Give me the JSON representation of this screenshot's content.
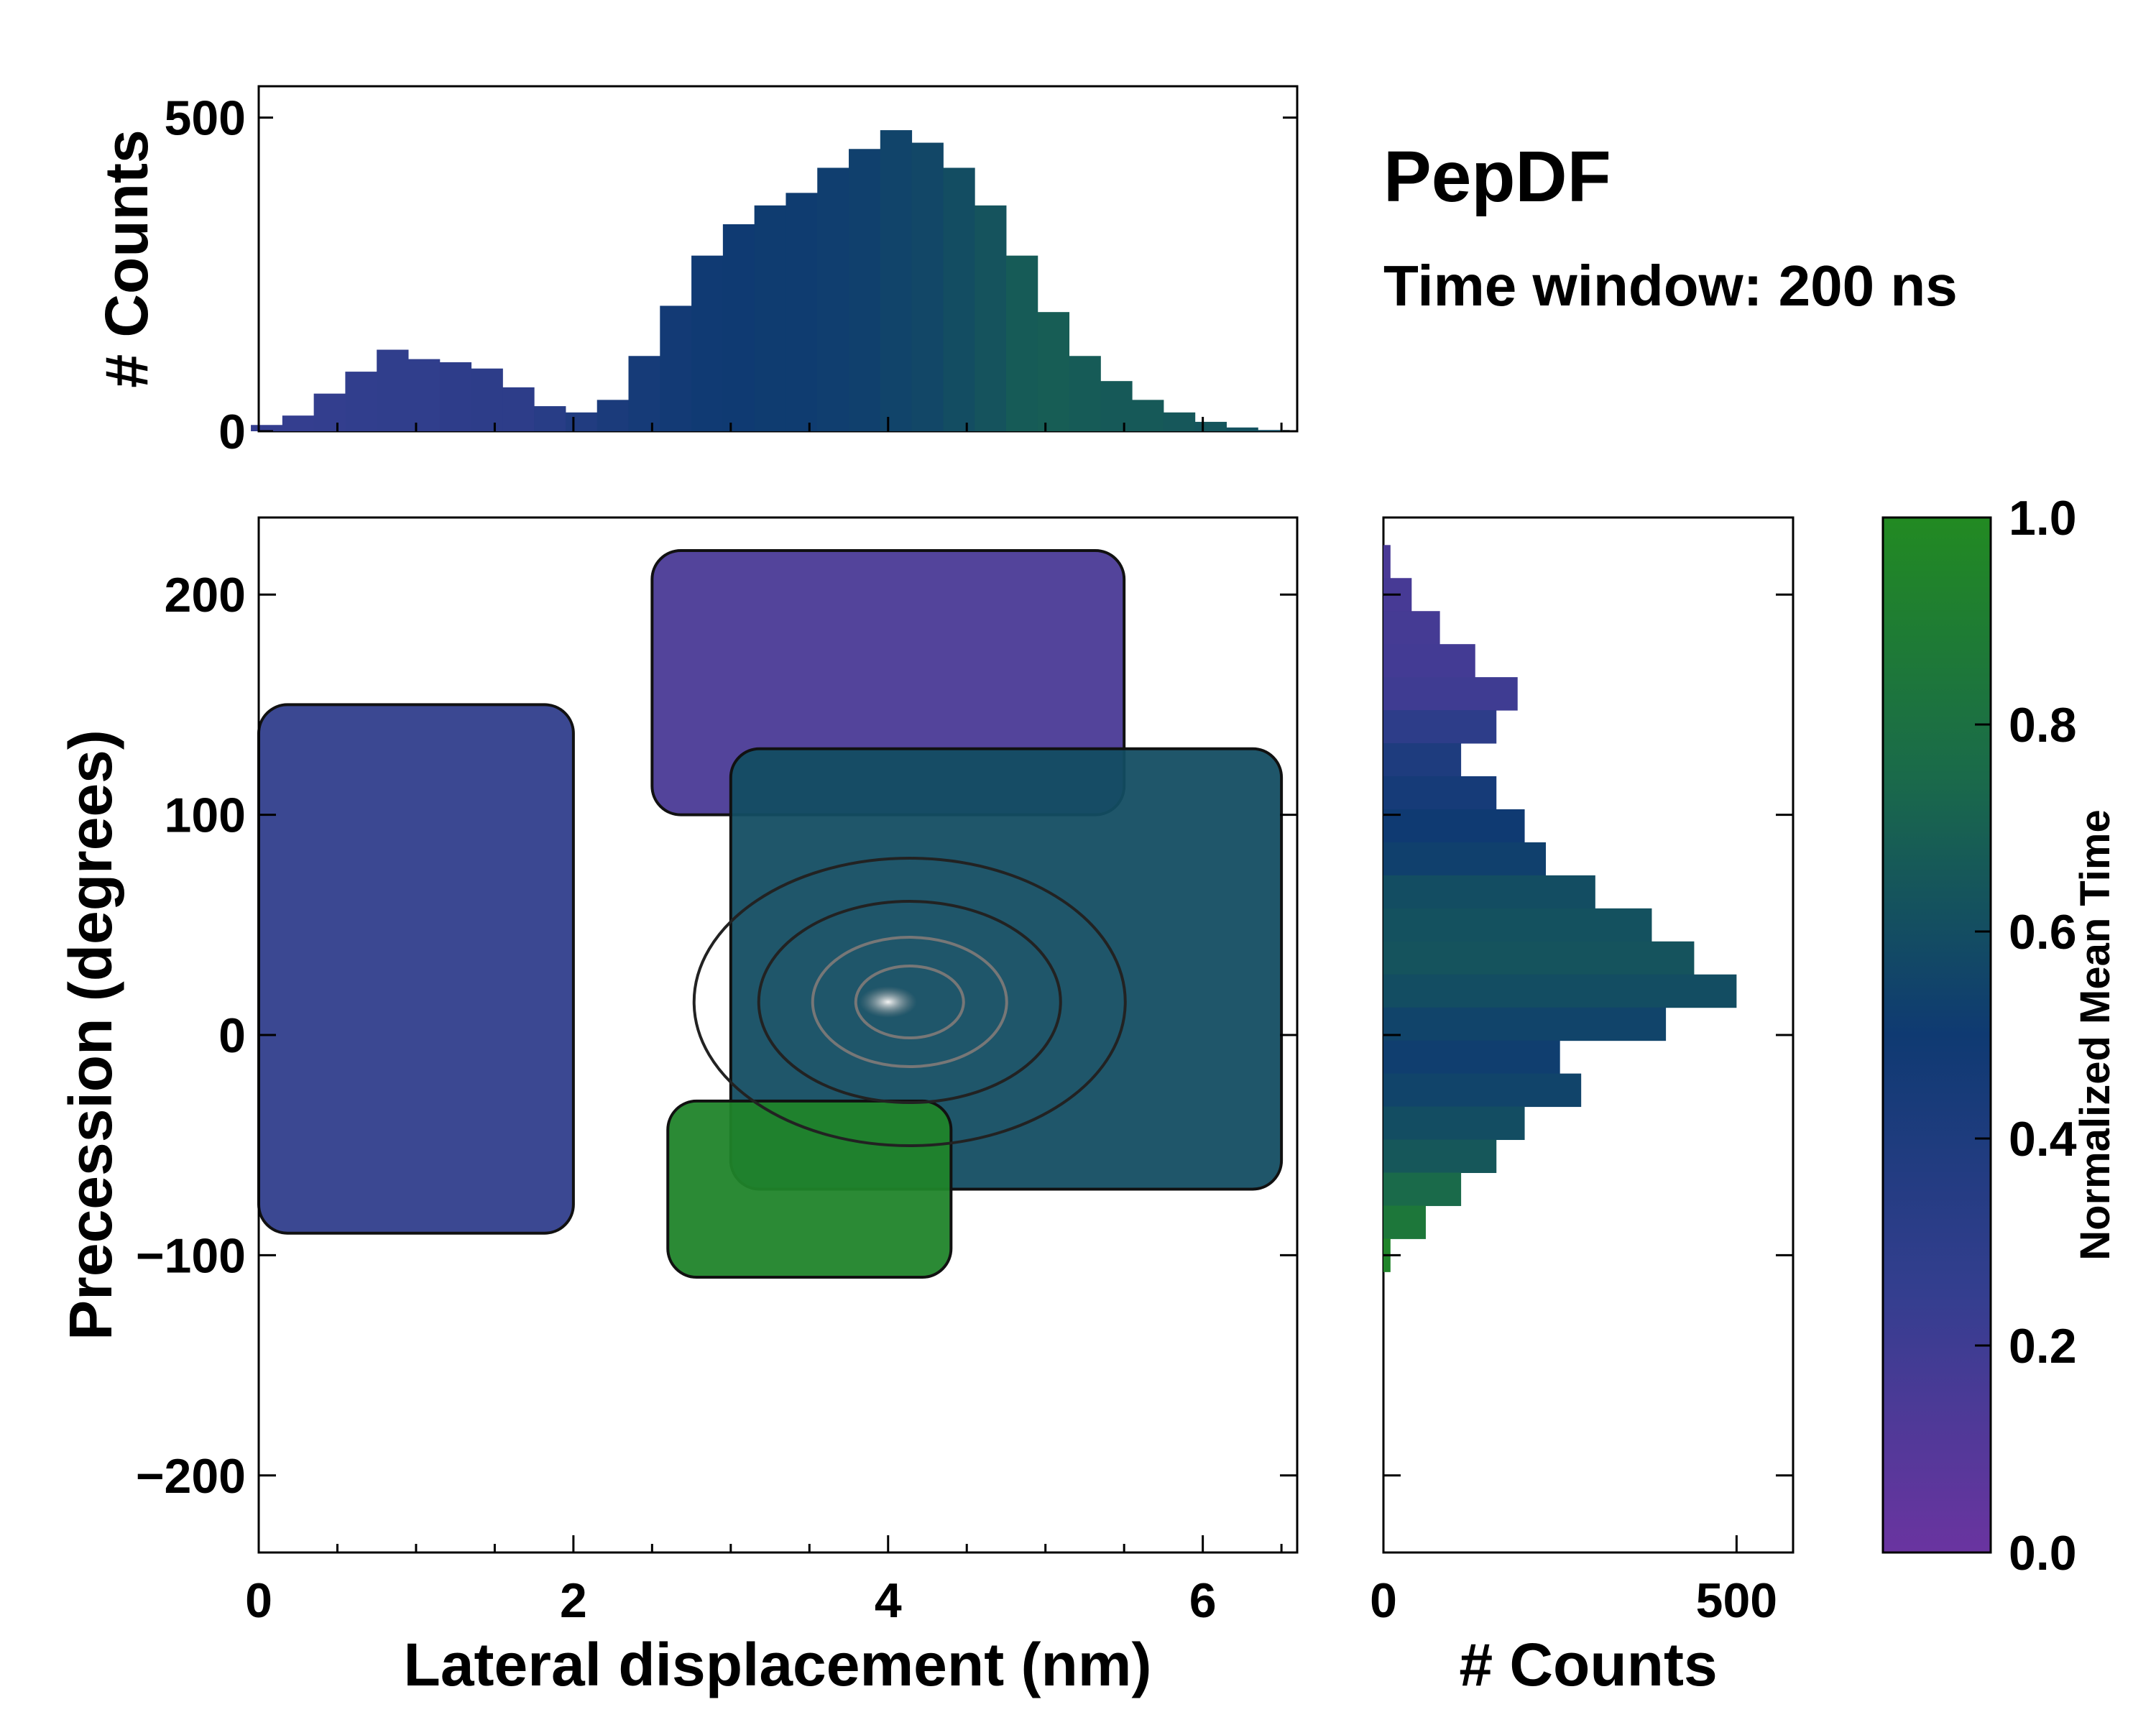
{
  "chart_data": [
    {
      "id": "top_hist",
      "type": "bar",
      "title": "",
      "xlabel": "",
      "ylabel": "# Counts",
      "xlim": [
        0,
        6.6
      ],
      "ylim": [
        0,
        550
      ],
      "yticks": [
        0,
        500
      ],
      "bin_width": 0.05,
      "bins_x": [
        0.05,
        0.25,
        0.45,
        0.65,
        0.85,
        1.05,
        1.25,
        1.45,
        1.65,
        1.85,
        2.05,
        2.25,
        2.45,
        2.65,
        2.85,
        3.05,
        3.25,
        3.45,
        3.65,
        3.85,
        4.05,
        4.25,
        4.45,
        4.65,
        4.85,
        5.05,
        5.25,
        5.45,
        5.65,
        5.85,
        6.05,
        6.25,
        6.45
      ],
      "values": [
        10,
        25,
        60,
        95,
        130,
        115,
        110,
        100,
        70,
        40,
        30,
        50,
        120,
        200,
        280,
        330,
        360,
        380,
        420,
        450,
        480,
        460,
        420,
        360,
        280,
        190,
        120,
        80,
        50,
        30,
        15,
        6,
        2
      ],
      "color_values": [
        0.25,
        0.25,
        0.26,
        0.27,
        0.28,
        0.28,
        0.29,
        0.3,
        0.3,
        0.33,
        0.38,
        0.42,
        0.45,
        0.47,
        0.49,
        0.5,
        0.51,
        0.51,
        0.52,
        0.53,
        0.55,
        0.57,
        0.6,
        0.63,
        0.67,
        0.68,
        0.67,
        0.66,
        0.66,
        0.65,
        0.64,
        0.62,
        0.6
      ]
    },
    {
      "id": "main_map",
      "type": "heatmap",
      "title": "",
      "xlabel": "Lateral displacement (nm)",
      "ylabel": "Precession (degrees)",
      "xlim": [
        0,
        6.6
      ],
      "ylim": [
        -235,
        235
      ],
      "xticks": [
        0,
        2,
        4,
        6
      ],
      "ytick_values": [
        -200,
        -100,
        0,
        100,
        200
      ],
      "ytick_labels": [
        "−200",
        "−100",
        "0",
        "100",
        "200"
      ],
      "colorbar_label": "Normalized Mean Time",
      "regions": [
        {
          "name": "upper-left basin",
          "x_range": [
            0.0,
            2.0
          ],
          "y_range": [
            -90,
            150
          ],
          "mean_time": 0.28
        },
        {
          "name": "top basin",
          "x_range": [
            2.5,
            5.5
          ],
          "y_range": [
            100,
            220
          ],
          "mean_time": 0.15
        },
        {
          "name": "central basin",
          "x_range": [
            3.0,
            6.5
          ],
          "y_range": [
            -70,
            130
          ],
          "mean_time": 0.6
        },
        {
          "name": "lower basin",
          "x_range": [
            2.6,
            4.4
          ],
          "y_range": [
            -110,
            -30
          ],
          "mean_time": 0.95
        }
      ],
      "density_peak": {
        "x": 4.0,
        "y": 15
      }
    },
    {
      "id": "right_hist",
      "type": "bar",
      "orientation": "horizontal",
      "xlabel": "# Counts",
      "ylabel": "",
      "xlim": [
        0,
        580
      ],
      "ylim": [
        -235,
        235
      ],
      "xticks": [
        0,
        500
      ],
      "bin_width_degrees": 5,
      "bins_y": [
        215,
        200,
        185,
        170,
        155,
        140,
        125,
        110,
        95,
        80,
        65,
        50,
        35,
        20,
        5,
        -10,
        -25,
        -40,
        -55,
        -70,
        -85,
        -100
      ],
      "values": [
        10,
        40,
        80,
        130,
        190,
        160,
        110,
        160,
        200,
        230,
        300,
        380,
        440,
        500,
        400,
        250,
        280,
        200,
        160,
        110,
        60,
        10
      ],
      "color_values": [
        0.15,
        0.16,
        0.17,
        0.18,
        0.2,
        0.3,
        0.4,
        0.45,
        0.5,
        0.53,
        0.6,
        0.62,
        0.63,
        0.6,
        0.55,
        0.52,
        0.55,
        0.6,
        0.65,
        0.75,
        0.85,
        0.95
      ]
    },
    {
      "id": "colorbar",
      "type": "colorbar",
      "label": "Normalized Mean Time",
      "ticks": [
        "0.0",
        "0.2",
        "0.4",
        "0.6",
        "0.8",
        "1.0"
      ],
      "range": [
        0,
        1
      ]
    }
  ],
  "annotations": {
    "title": "PepDF",
    "subtitle": "Time window: 200 ns"
  },
  "colors": {
    "low": "#6a34a0",
    "mid": "#0f3a72",
    "high": "#228a22"
  }
}
